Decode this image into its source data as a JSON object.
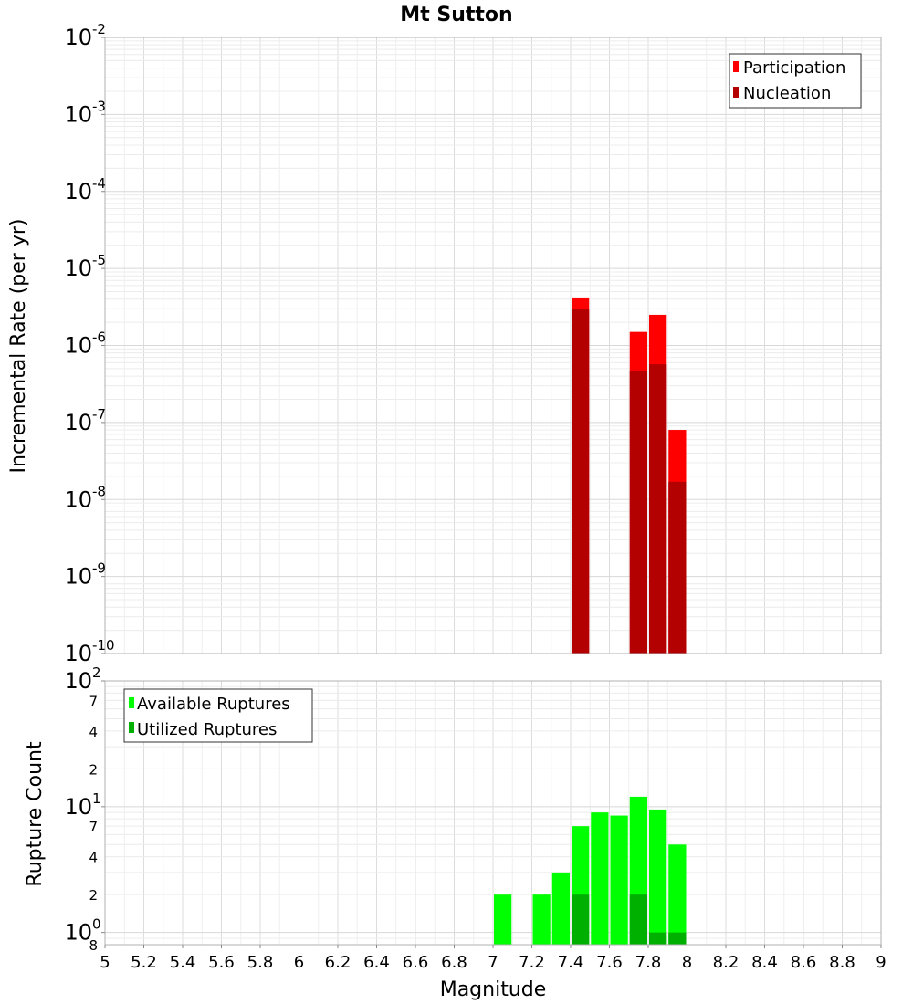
{
  "chart_data": [
    {
      "type": "bar",
      "title": "Mt Sutton",
      "xlabel": "",
      "ylabel": "Incremental Rate (per yr)",
      "yscale": "log",
      "ylim": [
        1e-10,
        0.01
      ],
      "xlim": [
        5,
        9
      ],
      "grid": true,
      "legend_position": "top-right",
      "bin_width": 0.1,
      "y_ticks": [
        {
          "base": "10",
          "exp": "-10",
          "value": 1e-10
        },
        {
          "base": "10",
          "exp": "-9",
          "value": 1e-09
        },
        {
          "base": "10",
          "exp": "-8",
          "value": 1e-08
        },
        {
          "base": "10",
          "exp": "-7",
          "value": 1e-07
        },
        {
          "base": "10",
          "exp": "-6",
          "value": 1e-06
        },
        {
          "base": "10",
          "exp": "-5",
          "value": 1e-05
        },
        {
          "base": "10",
          "exp": "-4",
          "value": 0.0001
        },
        {
          "base": "10",
          "exp": "-3",
          "value": 0.001
        },
        {
          "base": "10",
          "exp": "-2",
          "value": 0.01
        }
      ],
      "series": [
        {
          "name": "Participation",
          "color": "#ff0000",
          "x": [
            7.45,
            7.75,
            7.85,
            7.95
          ],
          "values": [
            4.2e-06,
            1.5e-06,
            2.5e-06,
            8e-08
          ]
        },
        {
          "name": "Nucleation",
          "color": "#b30000",
          "x": [
            7.45,
            7.75,
            7.85,
            7.95
          ],
          "values": [
            3e-06,
            4.6e-07,
            5.7e-07,
            1.7e-08
          ]
        }
      ]
    },
    {
      "type": "bar",
      "title": "",
      "xlabel": "Magnitude",
      "ylabel": "Rupture Count",
      "yscale": "log",
      "ylim": [
        0.8,
        100
      ],
      "xlim": [
        5,
        9
      ],
      "grid": true,
      "legend_position": "top-left",
      "bin_width": 0.1,
      "x_ticks": [
        "5",
        "5.2",
        "5.4",
        "5.6",
        "5.8",
        "6",
        "6.2",
        "6.4",
        "6.6",
        "6.8",
        "7",
        "7.2",
        "7.4",
        "7.6",
        "7.8",
        "8",
        "8.2",
        "8.4",
        "8.6",
        "8.8",
        "9"
      ],
      "y_major_ticks": [
        {
          "base": "10",
          "exp": "0",
          "value": 1
        },
        {
          "base": "10",
          "exp": "1",
          "value": 10
        },
        {
          "base": "10",
          "exp": "2",
          "value": 100
        }
      ],
      "y_minor_ticks": [
        {
          "label": "8",
          "value": 0.8
        },
        {
          "label": "2",
          "value": 2
        },
        {
          "label": "4",
          "value": 4
        },
        {
          "label": "7",
          "value": 7
        },
        {
          "label": "2",
          "value": 20
        },
        {
          "label": "4",
          "value": 40
        },
        {
          "label": "7",
          "value": 70
        }
      ],
      "series": [
        {
          "name": "Available Ruptures",
          "color": "#00ff00",
          "x": [
            7.05,
            7.25,
            7.35,
            7.45,
            7.55,
            7.65,
            7.75,
            7.85,
            7.95
          ],
          "values": [
            2,
            2,
            3,
            7,
            9,
            8.5,
            12,
            9.5,
            5
          ]
        },
        {
          "name": "Utilized Ruptures",
          "color": "#00b000",
          "x": [
            7.45,
            7.75,
            7.85,
            7.95
          ],
          "values": [
            2,
            2,
            1,
            1
          ]
        }
      ]
    }
  ]
}
